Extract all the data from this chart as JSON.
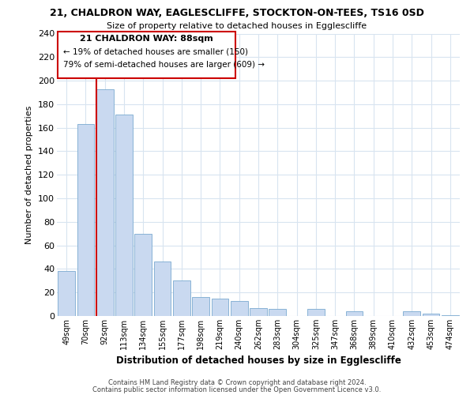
{
  "title1": "21, CHALDRON WAY, EAGLESCLIFFE, STOCKTON-ON-TEES, TS16 0SD",
  "title2": "Size of property relative to detached houses in Egglescliffe",
  "xlabel": "Distribution of detached houses by size in Egglescliffe",
  "ylabel": "Number of detached properties",
  "categories": [
    "49sqm",
    "70sqm",
    "92sqm",
    "113sqm",
    "134sqm",
    "155sqm",
    "177sqm",
    "198sqm",
    "219sqm",
    "240sqm",
    "262sqm",
    "283sqm",
    "304sqm",
    "325sqm",
    "347sqm",
    "368sqm",
    "389sqm",
    "410sqm",
    "432sqm",
    "453sqm",
    "474sqm"
  ],
  "values": [
    38,
    163,
    193,
    171,
    70,
    46,
    30,
    16,
    15,
    13,
    7,
    6,
    0,
    6,
    0,
    4,
    0,
    0,
    4,
    2,
    1
  ],
  "bar_color": "#c9d9f0",
  "bar_edge_color": "#7aaad0",
  "vline_x_index": 2,
  "vline_color": "#cc0000",
  "ylim": [
    0,
    240
  ],
  "yticks": [
    0,
    20,
    40,
    60,
    80,
    100,
    120,
    140,
    160,
    180,
    200,
    220,
    240
  ],
  "annotation_title": "21 CHALDRON WAY: 88sqm",
  "annotation_line1": "← 19% of detached houses are smaller (150)",
  "annotation_line2": "79% of semi-detached houses are larger (609) →",
  "footnote1": "Contains HM Land Registry data © Crown copyright and database right 2024.",
  "footnote2": "Contains public sector information licensed under the Open Government Licence v3.0.",
  "bg_color": "#ffffff",
  "grid_color": "#d8e4f0"
}
